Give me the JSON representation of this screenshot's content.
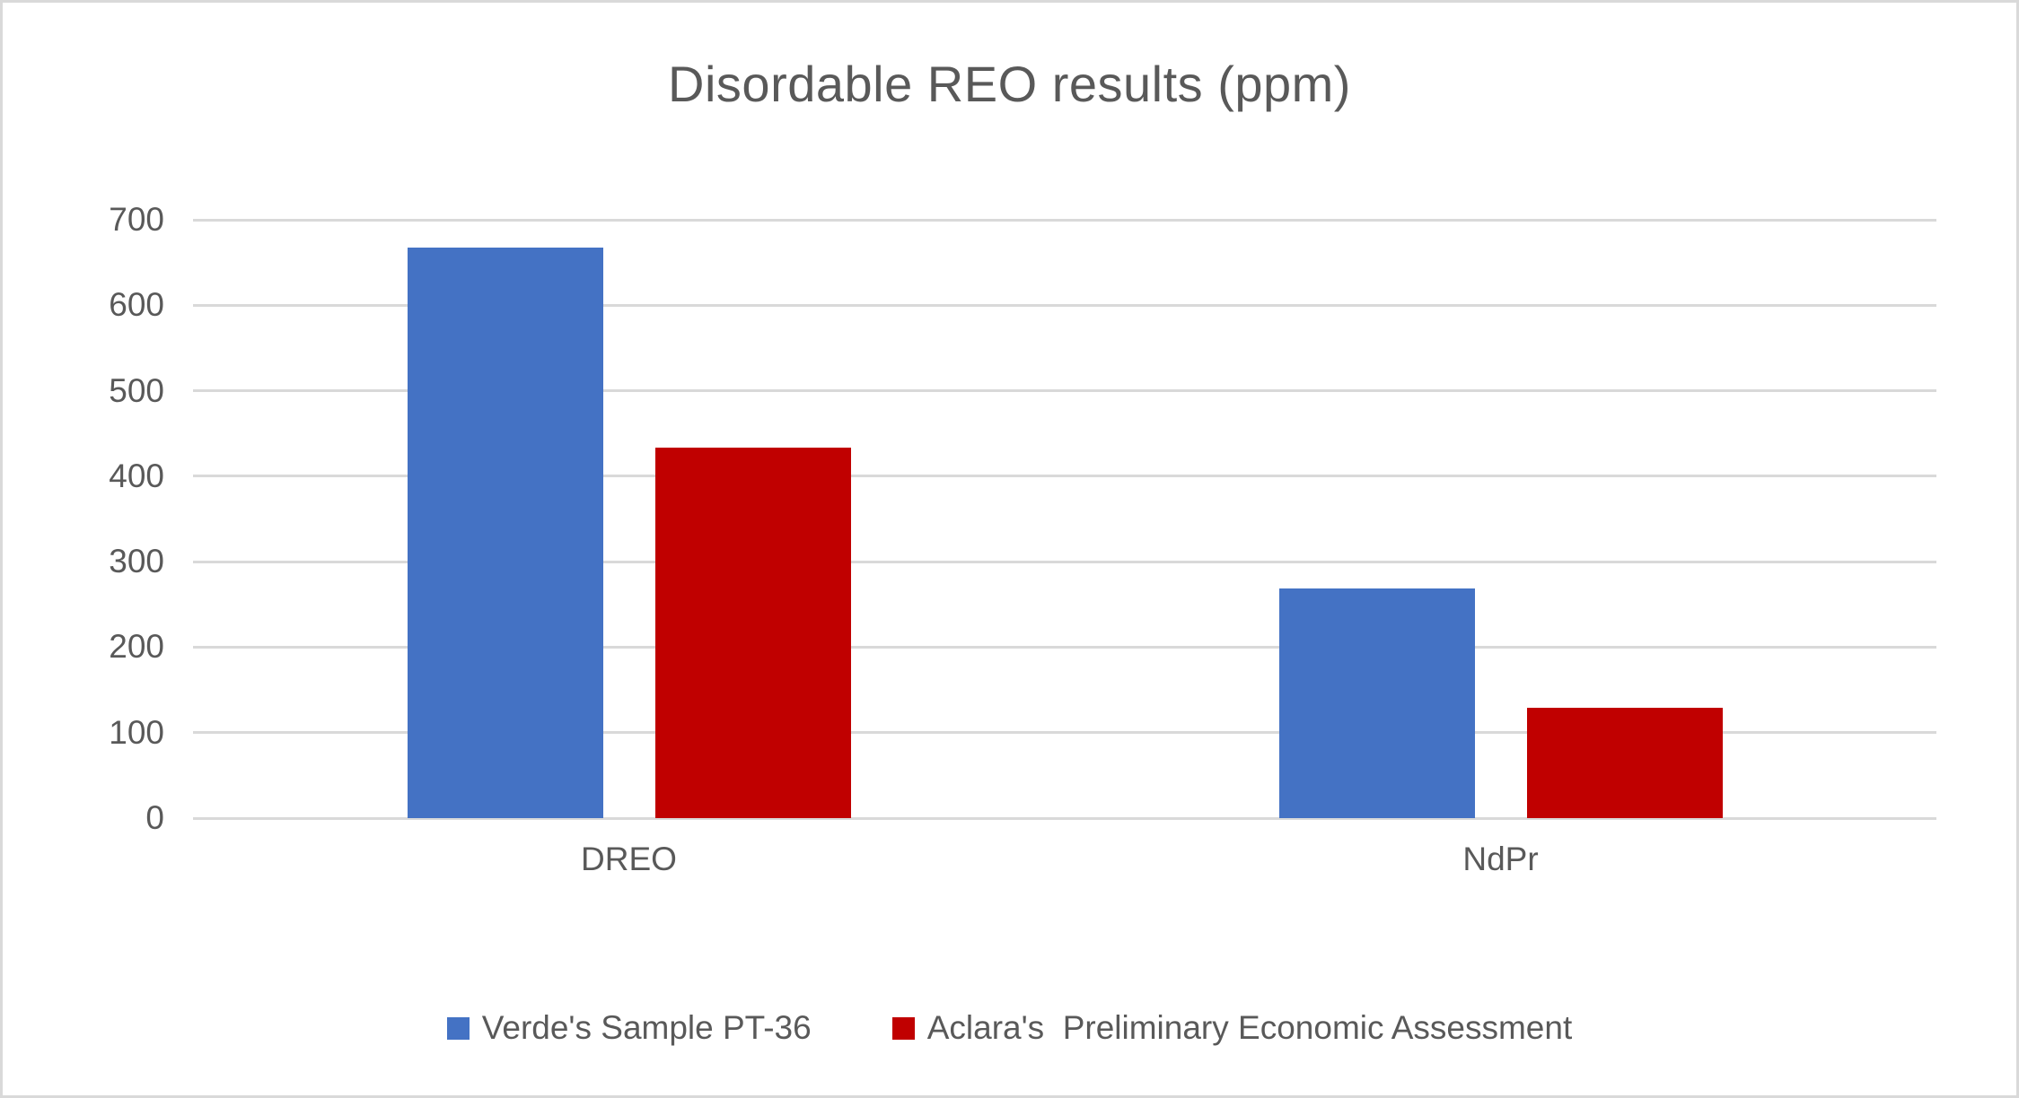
{
  "chart_data": {
    "type": "bar",
    "title": "Disordable REO results (ppm)",
    "categories": [
      "DREO",
      "NdPr"
    ],
    "series": [
      {
        "name": "Verde's Sample PT-36",
        "color": "#4472C4",
        "values": [
          667,
          269
        ]
      },
      {
        "name": "Aclara's  Preliminary Economic Assessment",
        "color": "#C00000",
        "values": [
          433,
          129
        ]
      }
    ],
    "xlabel": "",
    "ylabel": "",
    "ylim": [
      0,
      700
    ],
    "yticks": [
      0,
      100,
      200,
      300,
      400,
      500,
      600,
      700
    ],
    "grid": true,
    "legend_position": "bottom",
    "colors": {
      "text": "#595959",
      "gridline": "#D9D9D9",
      "background": "#FFFFFF",
      "border": "#D9D9D9"
    }
  }
}
